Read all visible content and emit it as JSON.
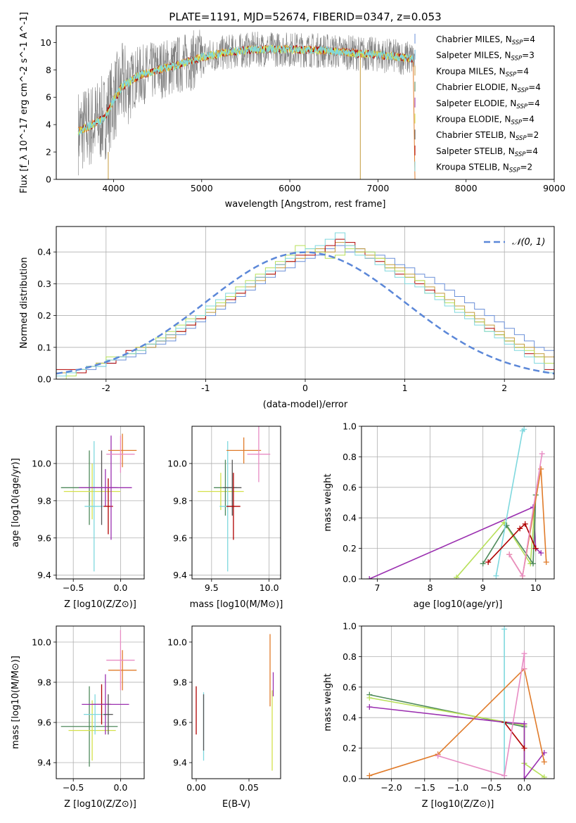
{
  "figure_title": "PLATE=1191, MJD=52674, FIBERID=0347, z=0.053",
  "palette": {
    "chabrier_miles": "#6a8fd8",
    "salpeter_miles": "#5fa8d3",
    "kroupa_miles": "#c49a3c",
    "chabrier_elodie": "#4f8a5b",
    "salpeter_elodie": "#9b30b0",
    "kroupa_elodie": "#d4e04a",
    "chabrier_stelib": "#555555",
    "salpeter_stelib": "#b00000",
    "kroupa_stelib": "#7fd8de",
    "data_grey": "#808080",
    "orange": "#e07b2a",
    "pink": "#e88cc4",
    "lime": "#b8e05a"
  },
  "chart_data": [
    {
      "id": "spectrum",
      "type": "line",
      "title": "PLATE=1191, MJD=52674, FIBERID=0347, z=0.053",
      "xlabel": "wavelength [Angstrom, rest frame]",
      "ylabel": "Flux [f_λ 10^-17 erg cm^-2 s^-1 A^-1]",
      "xlim": [
        3350,
        9000
      ],
      "ylim": [
        0,
        11.2
      ],
      "xticks": [
        4000,
        5000,
        6000,
        7000,
        8000,
        9000
      ],
      "yticks": [
        0,
        2,
        4,
        6,
        8,
        10
      ],
      "grid": false,
      "legend_position": "right",
      "legend": [
        {
          "label": "Chabrier MILES, N",
          "sub": "SSP",
          "suffix": "=4",
          "color": "#6a8fd8"
        },
        {
          "label": "Salpeter MILES, N",
          "sub": "SSP",
          "suffix": "=3",
          "color": "#5fa8d3"
        },
        {
          "label": "Kroupa MILES, N",
          "sub": "SSP",
          "suffix": "=4",
          "color": "#c49a3c"
        },
        {
          "label": "Chabrier ELODIE, N",
          "sub": "SSP",
          "suffix": "=4",
          "color": "#4f8a5b"
        },
        {
          "label": "Salpeter ELODIE, N",
          "sub": "SSP",
          "suffix": "=4",
          "color": "#9b30b0"
        },
        {
          "label": "Kroupa ELODIE, N",
          "sub": "SSP",
          "suffix": "=4",
          "color": "#d4e04a"
        },
        {
          "label": "Chabrier STELIB, N",
          "sub": "SSP",
          "suffix": "=2",
          "color": "#555555"
        },
        {
          "label": "Salpeter STELIB, N",
          "sub": "SSP",
          "suffix": "=4",
          "color": "#b00000"
        },
        {
          "label": "Kroupa STELIB, N",
          "sub": "SSP",
          "suffix": "=2",
          "color": "#7fd8de"
        }
      ],
      "x_range_data": [
        3600,
        8900
      ],
      "continuum_nodes": [
        [
          3600,
          3.5
        ],
        [
          3700,
          3.8
        ],
        [
          3900,
          4.5
        ],
        [
          4000,
          5.8
        ],
        [
          4100,
          6.8
        ],
        [
          4300,
          7.6
        ],
        [
          4500,
          8.0
        ],
        [
          4700,
          8.3
        ],
        [
          5000,
          8.9
        ],
        [
          5300,
          9.3
        ],
        [
          5600,
          9.5
        ],
        [
          6000,
          9.5
        ],
        [
          6400,
          9.4
        ],
        [
          6800,
          9.2
        ],
        [
          7000,
          9.1
        ],
        [
          7300,
          8.9
        ],
        [
          7400,
          8.8
        ]
      ]
    },
    {
      "id": "residuals",
      "type": "line",
      "xlabel": "(data-model)/error",
      "ylabel": "Normed distribution",
      "xlim": [
        -2.5,
        2.5
      ],
      "ylim": [
        0,
        0.48
      ],
      "xticks": [
        -2,
        -1,
        0,
        1,
        2
      ],
      "yticks": [
        0.0,
        0.1,
        0.2,
        0.3,
        0.4
      ],
      "grid": true,
      "legend_position": "top-right",
      "gaussian_label": "𝒩(0, 1)",
      "bin_width": 0.1,
      "bin_start": -2.5,
      "series": [
        {
          "color": "#6a8fd8",
          "values": [
            0.01,
            0.02,
            0.03,
            0.03,
            0.04,
            0.05,
            0.06,
            0.07,
            0.08,
            0.1,
            0.11,
            0.12,
            0.14,
            0.16,
            0.18,
            0.2,
            0.22,
            0.24,
            0.26,
            0.28,
            0.3,
            0.32,
            0.34,
            0.35,
            0.37,
            0.38,
            0.39,
            0.41,
            0.42,
            0.4,
            0.41,
            0.4,
            0.39,
            0.38,
            0.36,
            0.35,
            0.33,
            0.32,
            0.3,
            0.28,
            0.26,
            0.24,
            0.22,
            0.2,
            0.18,
            0.16,
            0.14,
            0.12,
            0.1,
            0.09
          ]
        },
        {
          "color": "#c49a3c",
          "values": [
            0.02,
            0.02,
            0.03,
            0.04,
            0.05,
            0.06,
            0.07,
            0.08,
            0.09,
            0.1,
            0.12,
            0.13,
            0.15,
            0.17,
            0.19,
            0.21,
            0.23,
            0.25,
            0.27,
            0.29,
            0.31,
            0.33,
            0.35,
            0.37,
            0.38,
            0.4,
            0.41,
            0.4,
            0.43,
            0.42,
            0.41,
            0.39,
            0.38,
            0.36,
            0.35,
            0.33,
            0.31,
            0.29,
            0.27,
            0.25,
            0.23,
            0.21,
            0.19,
            0.17,
            0.15,
            0.13,
            0.11,
            0.1,
            0.08,
            0.07
          ]
        },
        {
          "color": "#b00000",
          "values": [
            0.03,
            0.03,
            0.02,
            0.04,
            0.05,
            0.05,
            0.07,
            0.09,
            0.1,
            0.11,
            0.12,
            0.14,
            0.15,
            0.17,
            0.19,
            0.22,
            0.24,
            0.25,
            0.27,
            0.3,
            0.32,
            0.33,
            0.36,
            0.37,
            0.39,
            0.39,
            0.4,
            0.42,
            0.44,
            0.43,
            0.4,
            0.38,
            0.37,
            0.35,
            0.33,
            0.32,
            0.3,
            0.28,
            0.26,
            0.24,
            0.22,
            0.2,
            0.18,
            0.16,
            0.14,
            0.12,
            0.1,
            0.08,
            0.07,
            0.03
          ]
        },
        {
          "color": "#b8e05a",
          "values": [
            0.0,
            0.01,
            0.03,
            0.04,
            0.05,
            0.07,
            0.07,
            0.08,
            0.1,
            0.11,
            0.13,
            0.15,
            0.17,
            0.19,
            0.2,
            0.22,
            0.24,
            0.26,
            0.29,
            0.31,
            0.33,
            0.35,
            0.37,
            0.39,
            0.42,
            0.41,
            0.4,
            0.38,
            0.39,
            0.41,
            0.4,
            0.4,
            0.38,
            0.35,
            0.34,
            0.32,
            0.31,
            0.27,
            0.26,
            0.24,
            0.22,
            0.2,
            0.18,
            0.15,
            0.14,
            0.12,
            0.1,
            0.09,
            0.07,
            0.05
          ]
        },
        {
          "color": "#7fd8de",
          "values": [
            0.01,
            0.02,
            0.03,
            0.04,
            0.04,
            0.06,
            0.07,
            0.08,
            0.09,
            0.11,
            0.12,
            0.14,
            0.16,
            0.18,
            0.2,
            0.23,
            0.25,
            0.27,
            0.28,
            0.3,
            0.32,
            0.34,
            0.36,
            0.38,
            0.4,
            0.41,
            0.42,
            0.44,
            0.46,
            0.42,
            0.39,
            0.38,
            0.36,
            0.34,
            0.32,
            0.3,
            0.29,
            0.27,
            0.25,
            0.23,
            0.21,
            0.19,
            0.17,
            0.15,
            0.13,
            0.11,
            0.09,
            0.07,
            0.05,
            0.02
          ]
        }
      ]
    },
    {
      "id": "age_vs_Z",
      "type": "scatter",
      "xlabel": "Z [log10(Z/Z⊙)]",
      "ylabel": "age  [log10(age/yr)]",
      "xlim": [
        -0.68,
        0.25
      ],
      "ylim": [
        9.38,
        10.2
      ],
      "xticks": [
        -0.5,
        0.0
      ],
      "xtick_labels": [
        "−0.5",
        "0.0"
      ],
      "yticks": [
        9.4,
        9.6,
        9.8,
        10.0
      ],
      "yticks_labels": [
        "9.4",
        "9.6",
        "9.8",
        "10.0"
      ],
      "grid": true,
      "points": [
        {
          "x": -0.33,
          "y": 9.87,
          "xerr": 0.3,
          "yerr": 0.2,
          "color": "#4f8a5b"
        },
        {
          "x": -0.3,
          "y": 9.85,
          "xerr": 0.3,
          "yerr": 0.15,
          "color": "#d4e04a"
        },
        {
          "x": -0.28,
          "y": 9.77,
          "xerr": 0.1,
          "yerr": 0.35,
          "color": "#7fd8de"
        },
        {
          "x": -0.2,
          "y": 9.87,
          "xerr": 0.12,
          "yerr": 0.2,
          "color": "#555555"
        },
        {
          "x": -0.16,
          "y": 9.87,
          "xerr": 0.28,
          "yerr": 0.1,
          "color": "#9b30b0"
        },
        {
          "x": -0.13,
          "y": 9.77,
          "xerr": 0.05,
          "yerr": 0.15,
          "color": "#b00000"
        },
        {
          "x": -0.1,
          "y": 9.87,
          "xerr": 0.05,
          "yerr": 0.28,
          "color": "#9b30b0"
        },
        {
          "x": 0.02,
          "y": 10.07,
          "xerr": 0.15,
          "yerr": 0.09,
          "color": "#e07b2a"
        },
        {
          "x": 0.0,
          "y": 10.05,
          "xerr": 0.15,
          "yerr": 0.1,
          "color": "#e88cc4"
        }
      ]
    },
    {
      "id": "age_vs_mass",
      "type": "scatter",
      "xlabel": "mass [log10(M/M⊙)]",
      "ylabel": "",
      "xlim": [
        9.33,
        10.1
      ],
      "ylim": [
        9.38,
        10.2
      ],
      "xticks": [
        9.5,
        10.0
      ],
      "xtick_labels": [
        "9.5",
        "10.0"
      ],
      "yticks": [
        9.4,
        9.6,
        9.8,
        10.0
      ],
      "yticks_labels": [
        "9.4",
        "9.6",
        "9.8",
        "10.0"
      ],
      "grid": true,
      "points": [
        {
          "x": 9.58,
          "y": 9.85,
          "xerr": 0.2,
          "yerr": 0.1,
          "color": "#d4e04a"
        },
        {
          "x": 9.62,
          "y": 9.87,
          "xerr": 0.1,
          "yerr": 0.15,
          "color": "#4f8a5b"
        },
        {
          "x": 9.64,
          "y": 9.77,
          "xerr": 0.07,
          "yerr": 0.35,
          "color": "#7fd8de"
        },
        {
          "x": 9.68,
          "y": 9.87,
          "xerr": 0.08,
          "yerr": 0.15,
          "color": "#555555"
        },
        {
          "x": 9.69,
          "y": 9.77,
          "xerr": 0.06,
          "yerr": 0.18,
          "color": "#b00000"
        },
        {
          "x": 9.78,
          "y": 10.07,
          "xerr": 0.15,
          "yerr": 0.07,
          "color": "#e07b2a"
        },
        {
          "x": 9.91,
          "y": 10.05,
          "xerr": 0.1,
          "yerr": 0.15,
          "color": "#e88cc4"
        }
      ]
    },
    {
      "id": "mass_weight_vs_age",
      "type": "line",
      "xlabel": "age  [log10(age/yr)]",
      "ylabel": "mass weight",
      "xlim": [
        6.7,
        10.35
      ],
      "ylim": [
        0,
        1.0
      ],
      "xticks": [
        7,
        8,
        9,
        10
      ],
      "xtick_labels": [
        "7",
        "8",
        "9",
        "10"
      ],
      "yticks": [
        0.0,
        0.2,
        0.4,
        0.6,
        0.8,
        1.0
      ],
      "grid": true,
      "series": [
        {
          "color": "#9b30b0",
          "x": [
            6.85,
            9.95,
            10.0,
            10.1
          ],
          "y": [
            0.0,
            0.47,
            0.2,
            0.17
          ]
        },
        {
          "color": "#b8e05a",
          "x": [
            8.5,
            9.4,
            9.9,
            10.0
          ],
          "y": [
            0.01,
            0.37,
            0.1,
            0.55
          ]
        },
        {
          "color": "#4f8a5b",
          "x": [
            9.0,
            9.45,
            9.95,
            10.0
          ],
          "y": [
            0.1,
            0.35,
            0.1,
            0.55
          ]
        },
        {
          "color": "#7fd8de",
          "x": [
            9.25,
            9.75,
            9.78
          ],
          "y": [
            0.02,
            0.97,
            0.98
          ]
        },
        {
          "color": "#b00000",
          "x": [
            9.1,
            9.7,
            9.8,
            10.0
          ],
          "y": [
            0.11,
            0.33,
            0.36,
            0.2
          ]
        },
        {
          "color": "#e07b2a",
          "x": [
            9.5,
            9.75,
            10.1,
            10.2
          ],
          "y": [
            0.16,
            0.02,
            0.72,
            0.11
          ]
        },
        {
          "color": "#e88cc4",
          "x": [
            9.5,
            9.75,
            10.12
          ],
          "y": [
            0.16,
            0.02,
            0.82
          ]
        }
      ]
    },
    {
      "id": "mass_vs_Z",
      "type": "scatter",
      "xlabel": "Z [log10(Z/Z⊙)]",
      "ylabel": "mass [log10(M/M⊙)]",
      "xlim": [
        -0.68,
        0.25
      ],
      "ylim": [
        9.32,
        10.08
      ],
      "xticks": [
        -0.5,
        0.0
      ],
      "xtick_labels": [
        "−0.5",
        "0.0"
      ],
      "yticks": [
        9.4,
        9.6,
        9.8,
        10.0
      ],
      "yticks_labels": [
        "9.4",
        "9.6",
        "9.8",
        "10.0"
      ],
      "grid": true,
      "points": [
        {
          "x": -0.33,
          "y": 9.58,
          "xerr": 0.3,
          "yerr": 0.2,
          "color": "#4f8a5b"
        },
        {
          "x": -0.3,
          "y": 9.56,
          "xerr": 0.25,
          "yerr": 0.15,
          "color": "#d4e04a"
        },
        {
          "x": -0.27,
          "y": 9.64,
          "xerr": 0.12,
          "yerr": 0.1,
          "color": "#7fd8de"
        },
        {
          "x": -0.2,
          "y": 9.69,
          "xerr": 0.1,
          "yerr": 0.1,
          "color": "#b00000"
        },
        {
          "x": -0.16,
          "y": 9.69,
          "xerr": 0.25,
          "yerr": 0.15,
          "color": "#9b30b0"
        },
        {
          "x": -0.13,
          "y": 9.64,
          "xerr": 0.05,
          "yerr": 0.1,
          "color": "#555555"
        },
        {
          "x": 0.02,
          "y": 9.86,
          "xerr": 0.15,
          "yerr": 0.1,
          "color": "#e07b2a"
        },
        {
          "x": 0.0,
          "y": 9.91,
          "xerr": 0.15,
          "yerr": 0.15,
          "color": "#e88cc4"
        }
      ]
    },
    {
      "id": "mass_vs_EBV",
      "type": "scatter",
      "xlabel": "E(B-V)",
      "ylabel": "",
      "xlim": [
        -0.004,
        0.08
      ],
      "ylim": [
        9.32,
        10.08
      ],
      "xticks": [
        0.0,
        0.05
      ],
      "xtick_labels": [
        "0.00",
        "0.05"
      ],
      "yticks": [
        9.4,
        9.6,
        9.8,
        10.0
      ],
      "yticks_labels": [
        "9.4",
        "9.6",
        "9.8",
        "10.0"
      ],
      "grid": false,
      "points": [
        {
          "x": 0.0,
          "y": 9.66,
          "xerr": 0,
          "yerr": 0.12,
          "color": "#b00000"
        },
        {
          "x": 0.007,
          "y": 9.58,
          "xerr": 0,
          "yerr": 0.17,
          "color": "#7fd8de"
        },
        {
          "x": 0.007,
          "y": 9.6,
          "xerr": 0,
          "yerr": 0.14,
          "color": "#555555"
        },
        {
          "x": 0.07,
          "y": 9.86,
          "xerr": 0,
          "yerr": 0.18,
          "color": "#e07b2a"
        },
        {
          "x": 0.072,
          "y": 9.56,
          "xerr": 0,
          "yerr": 0.2,
          "color": "#d4e04a"
        },
        {
          "x": 0.073,
          "y": 9.79,
          "xerr": 0,
          "yerr": 0.06,
          "color": "#9b30b0"
        }
      ]
    },
    {
      "id": "mass_weight_vs_Z",
      "type": "line",
      "xlabel": "Z [log10(Z/Z⊙)]",
      "ylabel": "mass weight",
      "xlim": [
        -2.45,
        0.45
      ],
      "ylim": [
        0,
        1.0
      ],
      "xticks": [
        -2.0,
        -1.5,
        -1.0,
        -0.5,
        0.0
      ],
      "xtick_labels": [
        "−2.0",
        "−1.5",
        "−1.0",
        "−0.5",
        "0.0"
      ],
      "yticks": [
        0.0,
        0.2,
        0.4,
        0.6,
        0.8,
        1.0
      ],
      "grid": true,
      "series": [
        {
          "color": "#4f8a5b",
          "x": [
            -2.33,
            0.0,
            0.0
          ],
          "y": [
            0.55,
            0.34,
            0.1
          ]
        },
        {
          "color": "#b8e05a",
          "x": [
            -2.33,
            0.0,
            0.0,
            0.3
          ],
          "y": [
            0.53,
            0.35,
            0.1,
            0.01
          ]
        },
        {
          "color": "#9b30b0",
          "x": [
            -2.33,
            -0.3,
            0.0,
            0.0,
            0.3
          ],
          "y": [
            0.47,
            0.37,
            0.36,
            0.0,
            0.17
          ]
        },
        {
          "color": "#b00000",
          "x": [
            -0.3,
            0.0
          ],
          "y": [
            0.37,
            0.2
          ]
        },
        {
          "color": "#7fd8de",
          "x": [
            -0.3,
            -0.3
          ],
          "y": [
            0.02,
            0.98
          ]
        },
        {
          "color": "#e07b2a",
          "x": [
            -2.33,
            -1.3,
            0.0,
            0.3
          ],
          "y": [
            0.02,
            0.16,
            0.72,
            0.11
          ]
        },
        {
          "color": "#e88cc4",
          "x": [
            -1.3,
            -0.3,
            0.0,
            0.0
          ],
          "y": [
            0.15,
            0.02,
            0.82,
            0.72
          ]
        }
      ]
    }
  ]
}
